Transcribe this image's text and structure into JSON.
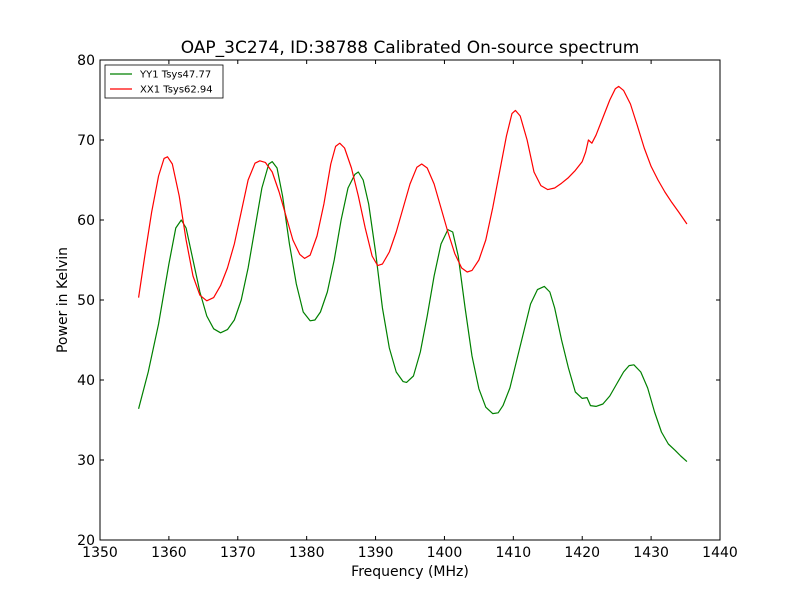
{
  "chart_data": {
    "type": "line",
    "title": "OAP_3C274, ID:38788 Calibrated On-source spectrum",
    "xlabel": "Frequency (MHz)",
    "ylabel": "Power in Kelvin",
    "xlim": [
      1350,
      1440
    ],
    "ylim": [
      20,
      80
    ],
    "xticks": [
      1350,
      1360,
      1370,
      1380,
      1390,
      1400,
      1410,
      1420,
      1430,
      1440
    ],
    "yticks": [
      20,
      30,
      40,
      50,
      60,
      70,
      80
    ],
    "grid": false,
    "legend_position": "top-left",
    "series": [
      {
        "name": "YY1 Tsys47.77",
        "color": "#008000",
        "points": [
          [
            1355.6,
            36.4
          ],
          [
            1357.0,
            41.0
          ],
          [
            1358.5,
            47.0
          ],
          [
            1360.0,
            54.5
          ],
          [
            1361.0,
            59.0
          ],
          [
            1361.8,
            60.0
          ],
          [
            1362.5,
            59.0
          ],
          [
            1363.5,
            55.0
          ],
          [
            1364.5,
            51.0
          ],
          [
            1365.5,
            48.0
          ],
          [
            1366.5,
            46.4
          ],
          [
            1367.5,
            45.9
          ],
          [
            1368.5,
            46.3
          ],
          [
            1369.5,
            47.5
          ],
          [
            1370.5,
            50.0
          ],
          [
            1371.5,
            54.0
          ],
          [
            1372.5,
            59.0
          ],
          [
            1373.5,
            64.0
          ],
          [
            1374.5,
            67.0
          ],
          [
            1375.0,
            67.3
          ],
          [
            1375.7,
            66.5
          ],
          [
            1376.5,
            63.0
          ],
          [
            1377.5,
            57.0
          ],
          [
            1378.5,
            52.0
          ],
          [
            1379.5,
            48.5
          ],
          [
            1380.5,
            47.4
          ],
          [
            1381.2,
            47.5
          ],
          [
            1382.0,
            48.5
          ],
          [
            1383.0,
            51.0
          ],
          [
            1384.0,
            55.0
          ],
          [
            1385.0,
            60.0
          ],
          [
            1386.0,
            64.0
          ],
          [
            1387.0,
            65.7
          ],
          [
            1387.5,
            66.0
          ],
          [
            1388.2,
            65.0
          ],
          [
            1389.0,
            62.0
          ],
          [
            1390.0,
            56.0
          ],
          [
            1391.0,
            49.0
          ],
          [
            1392.0,
            44.0
          ],
          [
            1393.0,
            41.0
          ],
          [
            1394.0,
            39.8
          ],
          [
            1394.5,
            39.7
          ],
          [
            1395.5,
            40.5
          ],
          [
            1396.5,
            43.5
          ],
          [
            1397.5,
            48.0
          ],
          [
            1398.5,
            53.0
          ],
          [
            1399.5,
            57.0
          ],
          [
            1400.5,
            58.8
          ],
          [
            1401.2,
            58.5
          ],
          [
            1402.0,
            55.5
          ],
          [
            1403.0,
            49.0
          ],
          [
            1404.0,
            43.0
          ],
          [
            1405.0,
            38.9
          ],
          [
            1406.0,
            36.6
          ],
          [
            1407.0,
            35.8
          ],
          [
            1407.8,
            35.9
          ],
          [
            1408.5,
            36.8
          ],
          [
            1409.5,
            39.0
          ],
          [
            1410.5,
            42.5
          ],
          [
            1411.5,
            46.0
          ],
          [
            1412.5,
            49.5
          ],
          [
            1413.5,
            51.3
          ],
          [
            1414.5,
            51.7
          ],
          [
            1415.3,
            51.0
          ],
          [
            1416.0,
            49.0
          ],
          [
            1417.0,
            45.0
          ],
          [
            1418.0,
            41.5
          ],
          [
            1419.0,
            38.5
          ],
          [
            1420.0,
            37.7
          ],
          [
            1420.7,
            37.8
          ],
          [
            1421.2,
            36.8
          ],
          [
            1422.0,
            36.7
          ],
          [
            1423.0,
            37.0
          ],
          [
            1424.0,
            38.0
          ],
          [
            1425.0,
            39.5
          ],
          [
            1426.0,
            41.0
          ],
          [
            1426.8,
            41.8
          ],
          [
            1427.5,
            41.9
          ],
          [
            1428.5,
            41.0
          ],
          [
            1429.5,
            39.0
          ],
          [
            1430.5,
            36.0
          ],
          [
            1431.5,
            33.5
          ],
          [
            1432.5,
            32.0
          ],
          [
            1433.5,
            31.2
          ],
          [
            1434.3,
            30.5
          ],
          [
            1435.2,
            29.8
          ]
        ]
      },
      {
        "name": "XX1 Tsys62.94",
        "color": "#ff0000",
        "points": [
          [
            1355.6,
            50.3
          ],
          [
            1356.5,
            55.5
          ],
          [
            1357.5,
            61.0
          ],
          [
            1358.5,
            65.5
          ],
          [
            1359.3,
            67.7
          ],
          [
            1359.8,
            67.9
          ],
          [
            1360.5,
            67.0
          ],
          [
            1361.5,
            63.0
          ],
          [
            1362.5,
            57.5
          ],
          [
            1363.5,
            53.0
          ],
          [
            1364.5,
            50.6
          ],
          [
            1365.5,
            49.9
          ],
          [
            1366.5,
            50.3
          ],
          [
            1367.5,
            51.8
          ],
          [
            1368.5,
            54.0
          ],
          [
            1369.5,
            57.0
          ],
          [
            1370.5,
            61.0
          ],
          [
            1371.5,
            65.0
          ],
          [
            1372.5,
            67.1
          ],
          [
            1373.2,
            67.4
          ],
          [
            1374.0,
            67.2
          ],
          [
            1375.0,
            66.0
          ],
          [
            1376.0,
            63.5
          ],
          [
            1377.0,
            60.5
          ],
          [
            1378.0,
            57.5
          ],
          [
            1379.0,
            55.7
          ],
          [
            1379.7,
            55.2
          ],
          [
            1380.5,
            55.6
          ],
          [
            1381.5,
            58.0
          ],
          [
            1382.5,
            62.0
          ],
          [
            1383.5,
            67.0
          ],
          [
            1384.2,
            69.2
          ],
          [
            1384.8,
            69.6
          ],
          [
            1385.5,
            69.0
          ],
          [
            1386.5,
            66.5
          ],
          [
            1387.5,
            63.0
          ],
          [
            1388.5,
            59.0
          ],
          [
            1389.5,
            55.5
          ],
          [
            1390.3,
            54.3
          ],
          [
            1391.0,
            54.5
          ],
          [
            1392.0,
            56.0
          ],
          [
            1393.0,
            58.5
          ],
          [
            1394.0,
            61.5
          ],
          [
            1395.0,
            64.5
          ],
          [
            1396.0,
            66.6
          ],
          [
            1396.7,
            67.0
          ],
          [
            1397.5,
            66.5
          ],
          [
            1398.5,
            64.5
          ],
          [
            1399.5,
            61.5
          ],
          [
            1400.5,
            58.5
          ],
          [
            1401.5,
            55.8
          ],
          [
            1402.5,
            54.0
          ],
          [
            1403.3,
            53.5
          ],
          [
            1404.0,
            53.7
          ],
          [
            1405.0,
            55.0
          ],
          [
            1406.0,
            57.5
          ],
          [
            1407.0,
            61.5
          ],
          [
            1408.0,
            66.0
          ],
          [
            1409.0,
            70.5
          ],
          [
            1409.8,
            73.3
          ],
          [
            1410.3,
            73.7
          ],
          [
            1411.0,
            73.0
          ],
          [
            1412.0,
            70.0
          ],
          [
            1413.0,
            66.0
          ],
          [
            1414.0,
            64.3
          ],
          [
            1415.0,
            63.8
          ],
          [
            1416.0,
            64.0
          ],
          [
            1417.0,
            64.6
          ],
          [
            1418.0,
            65.3
          ],
          [
            1419.0,
            66.2
          ],
          [
            1420.0,
            67.3
          ],
          [
            1420.5,
            68.5
          ],
          [
            1420.9,
            70.0
          ],
          [
            1421.4,
            69.6
          ],
          [
            1422.0,
            70.6
          ],
          [
            1423.0,
            72.8
          ],
          [
            1424.0,
            75.0
          ],
          [
            1424.8,
            76.4
          ],
          [
            1425.3,
            76.7
          ],
          [
            1426.0,
            76.2
          ],
          [
            1427.0,
            74.5
          ],
          [
            1428.0,
            71.8
          ],
          [
            1429.0,
            69.0
          ],
          [
            1430.0,
            66.7
          ],
          [
            1431.0,
            65.0
          ],
          [
            1432.0,
            63.5
          ],
          [
            1433.0,
            62.2
          ],
          [
            1434.0,
            61.0
          ],
          [
            1435.2,
            59.5
          ]
        ]
      }
    ]
  }
}
